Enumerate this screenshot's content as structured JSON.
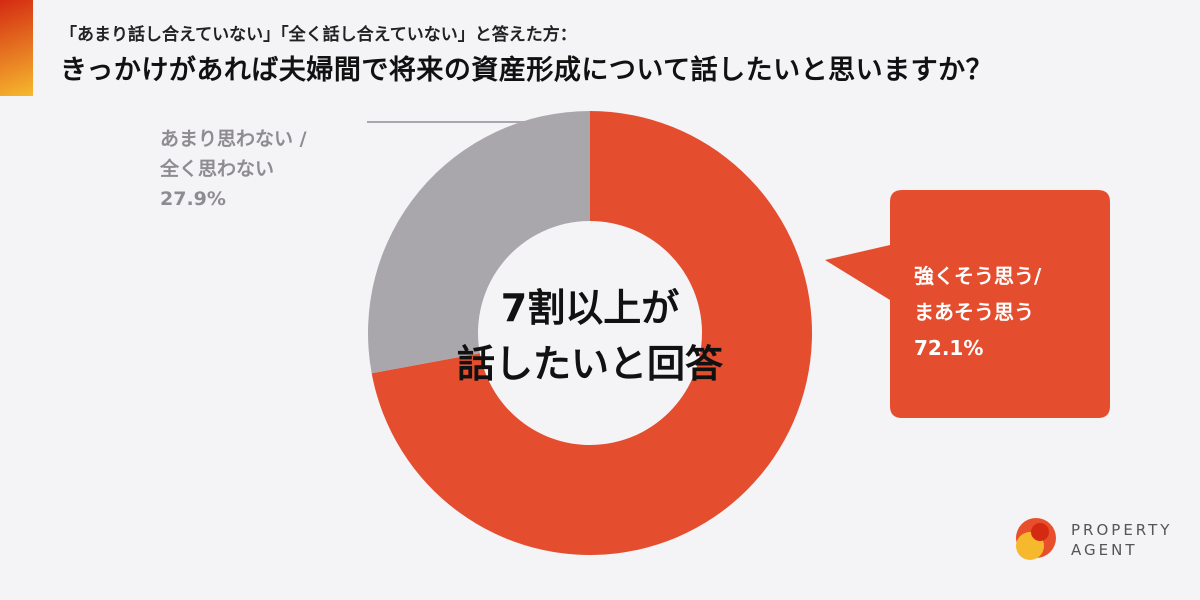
{
  "header": {
    "subtitle": "「あまり話し合えていない」「全く話し合えていない」と答えた方：",
    "title": "きっかけがあれば夫婦間で将来の資産形成について話したいと思いますか？"
  },
  "chart_data": {
    "type": "pie",
    "donut": true,
    "start": "12 o'clock, clockwise",
    "series": [
      {
        "label_line1": "強くそう思う/",
        "label_line2": "まあそう思う",
        "value_label": "72.1%",
        "value": 72.1,
        "color": "#e44d2e"
      },
      {
        "label_line1": "あまり思わない /",
        "label_line2": "全く思わない",
        "value_label": "27.9%",
        "value": 27.9,
        "color": "#a9a7ab"
      }
    ],
    "center_line1": "7割以上が",
    "center_line2": "話したいと回答"
  },
  "logo": {
    "line1": "PROPERTY",
    "line2": "AGENT"
  }
}
